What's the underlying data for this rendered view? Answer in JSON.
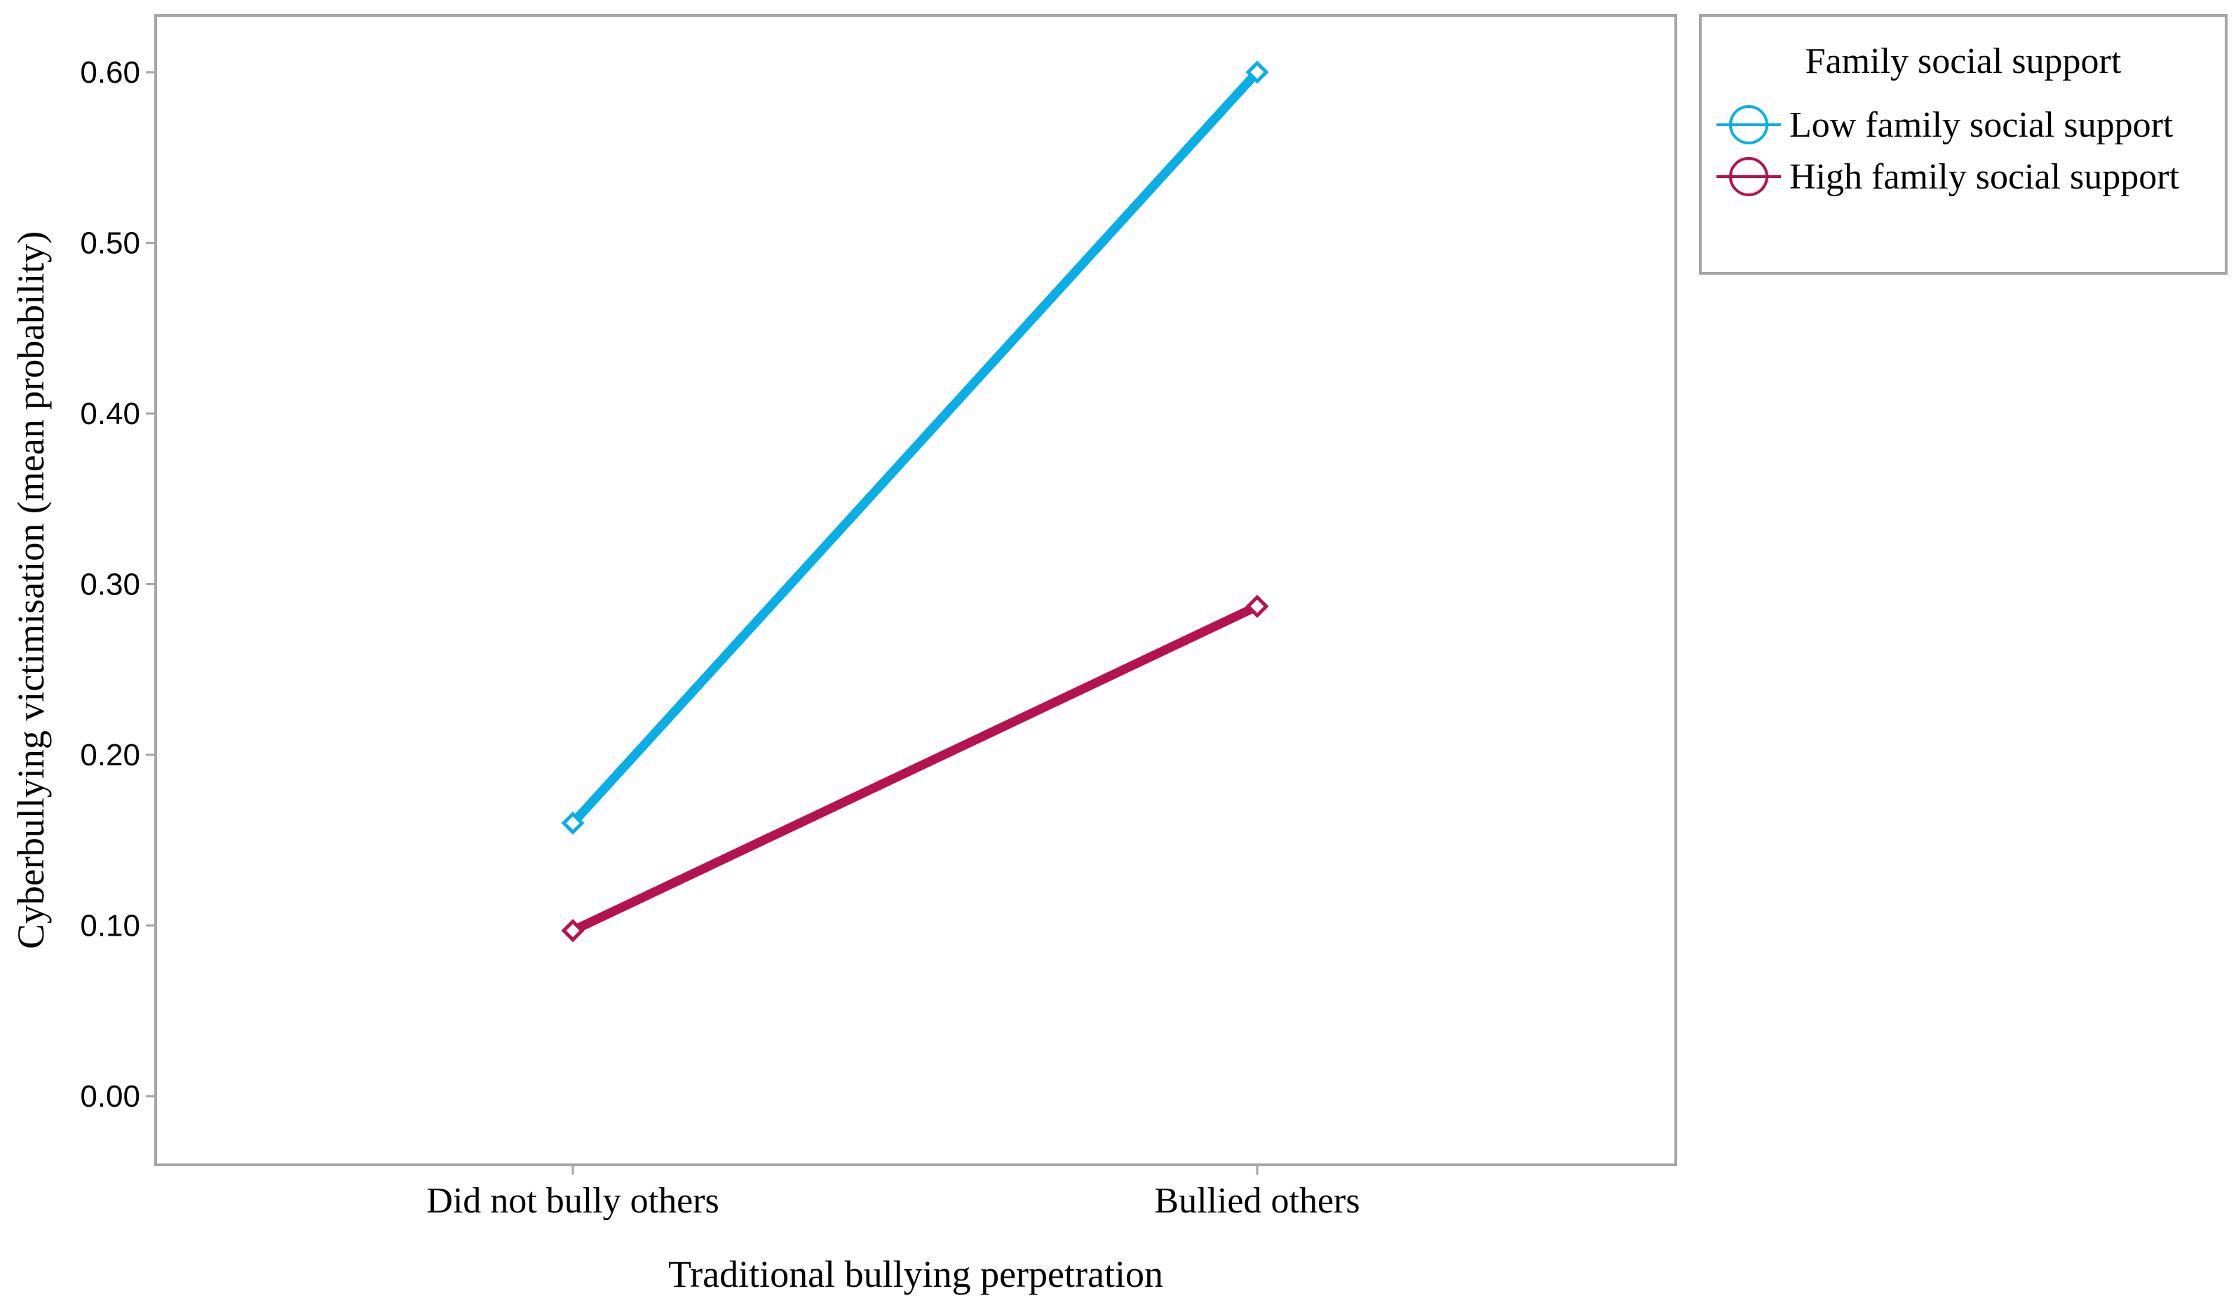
{
  "chart_data": {
    "type": "line",
    "xlabel": "Traditional bullying perpetration",
    "ylabel": "Cyberbullying victimisation (mean probability)",
    "categories": [
      "Did not bully others",
      "Bullied others"
    ],
    "ylim": [
      0,
      0.6
    ],
    "yticks": [
      "0.00",
      "0.10",
      "0.20",
      "0.30",
      "0.40",
      "0.50",
      "0.60"
    ],
    "grid": false,
    "legend": {
      "title": "Family social support",
      "placement": "right-top"
    },
    "series": [
      {
        "name": "Low family social support",
        "values": [
          0.16,
          0.6
        ],
        "color": "#0aaee6"
      },
      {
        "name": "High family social support",
        "values": [
          0.097,
          0.287
        ],
        "color": "#b5124f"
      }
    ]
  }
}
